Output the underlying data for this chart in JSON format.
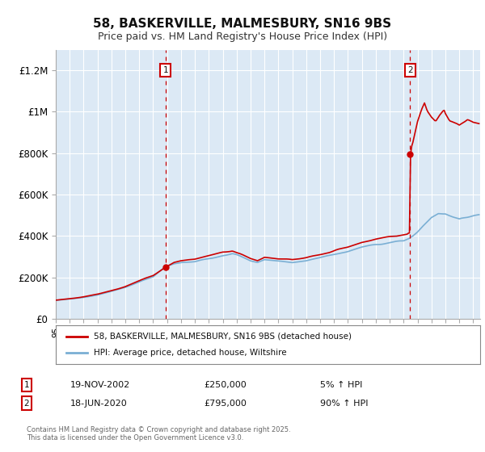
{
  "title": "58, BASKERVILLE, MALMESBURY, SN16 9BS",
  "subtitle": "Price paid vs. HM Land Registry's House Price Index (HPI)",
  "title_fontsize": 11,
  "subtitle_fontsize": 9,
  "background_color": "#dce9f5",
  "plot_bg_color": "#dce9f5",
  "fig_bg_color": "#ffffff",
  "ylabel_ticks": [
    "£0",
    "£200K",
    "£400K",
    "£600K",
    "£800K",
    "£1M",
    "£1.2M"
  ],
  "ytick_values": [
    0,
    200000,
    400000,
    600000,
    800000,
    1000000,
    1200000
  ],
  "ylim": [
    0,
    1300000
  ],
  "xlim_start": 1995.0,
  "xlim_end": 2025.5,
  "sale1_year": 2002.89,
  "sale1_price": 250000,
  "sale1_label": "19-NOV-2002",
  "sale1_pct": "5% ↑ HPI",
  "sale2_year": 2020.46,
  "sale2_price": 795000,
  "sale2_label": "18-JUN-2020",
  "sale2_pct": "90% ↑ HPI",
  "line_color_red": "#cc0000",
  "line_color_blue": "#7aafd4",
  "vline_color": "#cc0000",
  "marker_box_color": "#cc0000",
  "legend1_label": "58, BASKERVILLE, MALMESBURY, SN16 9BS (detached house)",
  "legend2_label": "HPI: Average price, detached house, Wiltshire",
  "footer": "Contains HM Land Registry data © Crown copyright and database right 2025.\nThis data is licensed under the Open Government Licence v3.0."
}
